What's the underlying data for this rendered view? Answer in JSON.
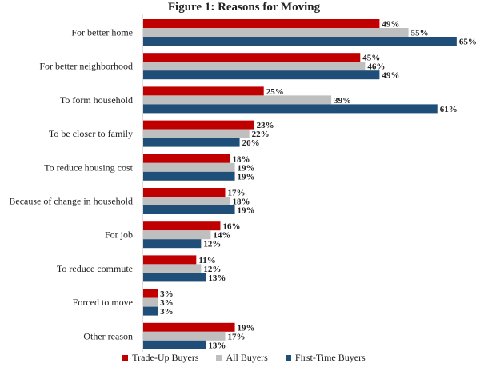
{
  "chart_data": {
    "type": "bar",
    "orientation": "horizontal",
    "title": "Figure 1: Reasons for Moving",
    "xlabel": "",
    "ylabel": "",
    "value_suffix": "%",
    "xlim": [
      0,
      70
    ],
    "grid": false,
    "legend_position": "bottom",
    "categories": [
      "For better home",
      "For better neighborhood",
      "To form household",
      "To be closer to family",
      "To reduce housing cost",
      "Because of change in household",
      "For job",
      "To reduce commute",
      "Forced to move",
      "Other reason"
    ],
    "series": [
      {
        "name": "Trade-Up Buyers",
        "color": "#c00000",
        "values": [
          49,
          45,
          25,
          23,
          18,
          17,
          16,
          11,
          3,
          19
        ]
      },
      {
        "name": "All Buyers",
        "color": "#bfbfbf",
        "values": [
          55,
          46,
          39,
          22,
          19,
          18,
          14,
          12,
          3,
          17
        ]
      },
      {
        "name": "First-Time Buyers",
        "color": "#1f4e79",
        "values": [
          65,
          49,
          61,
          20,
          19,
          19,
          12,
          13,
          3,
          13
        ]
      }
    ]
  }
}
